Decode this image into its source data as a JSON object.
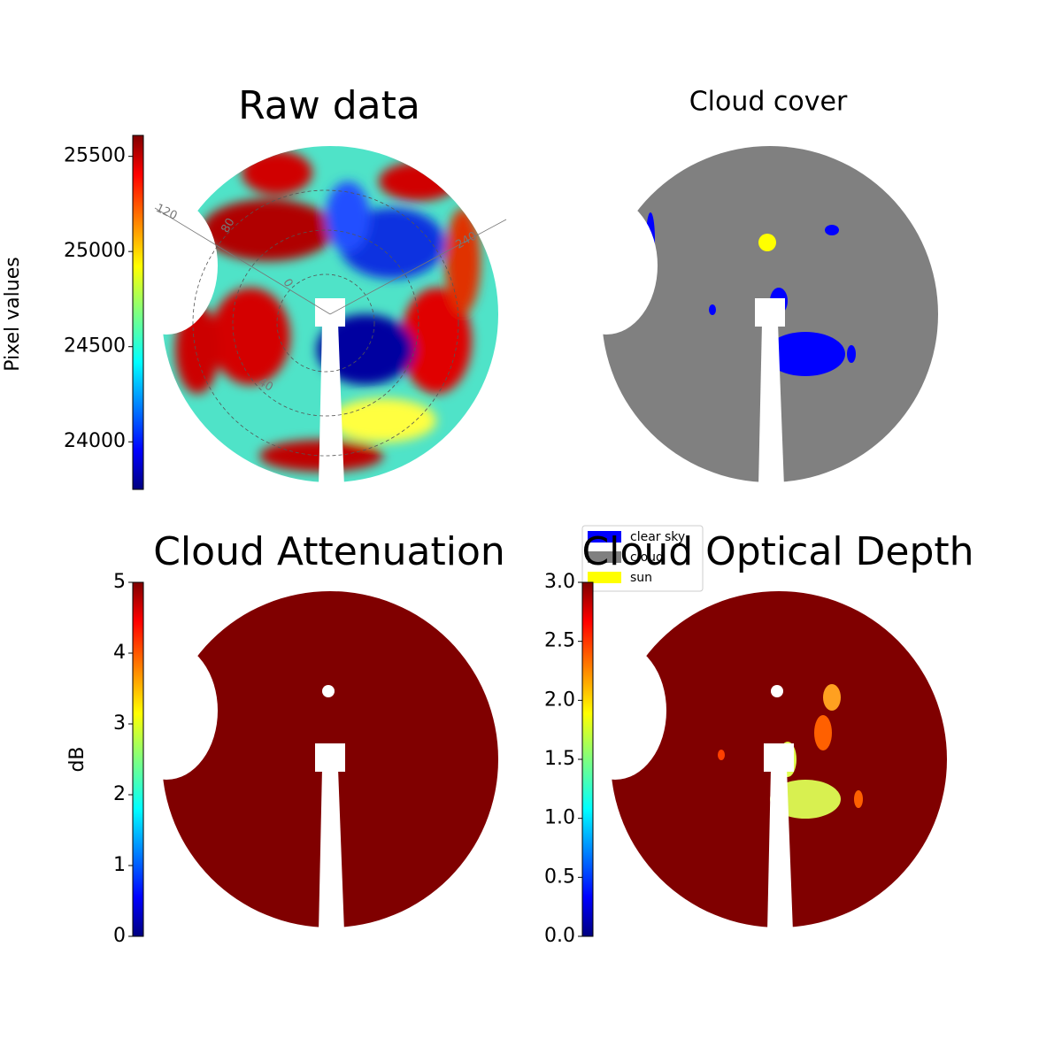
{
  "chart_data": [
    {
      "type": "image",
      "title": "Raw data",
      "colormap": "jet",
      "colorbar_label": "Pixel values",
      "ylim": [
        23750,
        25610
      ],
      "yticks": [
        24000,
        24500,
        25000,
        25500
      ],
      "annotations": [
        "120",
        "80",
        "0",
        "240",
        "40"
      ]
    },
    {
      "type": "image",
      "title": "Cloud cover",
      "series": [
        {
          "name": "clear sky",
          "color": "#0000ff"
        },
        {
          "name": "cloud",
          "color": "#808080"
        },
        {
          "name": "sun",
          "color": "#ffff00"
        }
      ]
    },
    {
      "type": "image",
      "title": "Cloud Attenuation",
      "colormap": "jet",
      "colorbar_label": "dB",
      "ylim": [
        0,
        5
      ],
      "yticks": [
        0,
        1,
        2,
        3,
        4,
        5
      ]
    },
    {
      "type": "image",
      "title": "Cloud Optical Depth",
      "colormap": "jet",
      "ylim": [
        0,
        3
      ],
      "yticks": [
        {
          "value": 0,
          "label": "0.0"
        },
        0.5,
        {
          "value": 1,
          "label": "1.0"
        },
        1.5,
        {
          "value": 2,
          "label": "2.0"
        },
        2.5,
        {
          "value": 3,
          "label": "3.0"
        }
      ]
    }
  ]
}
